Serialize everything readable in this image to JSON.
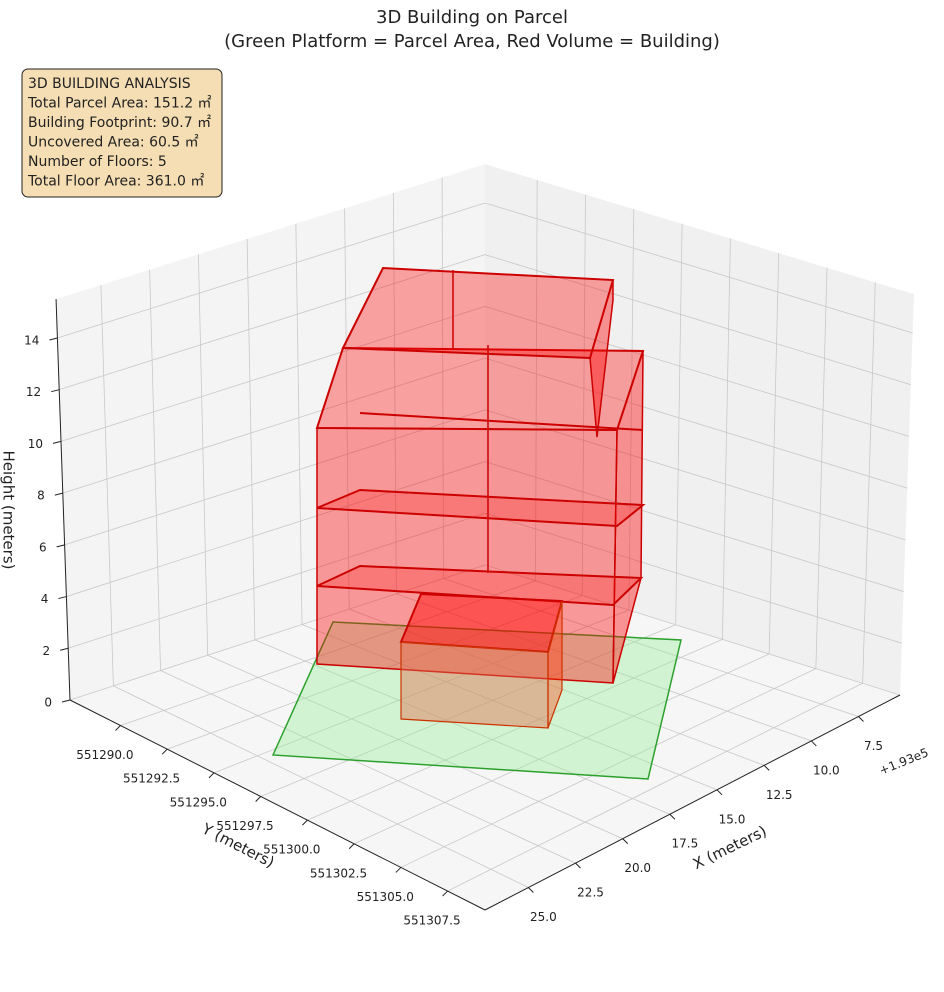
{
  "chart_data": {
    "type": "bar3d",
    "title": "3D Building on Parcel",
    "subtitle": "(Green Platform = Parcel Area, Red Volume = Building)",
    "info_box": [
      "3D BUILDING ANALYSIS",
      "Total Parcel Area: 151.2 ㎡",
      "Building Footprint: 90.7 ㎡",
      "Uncovered Area: 60.5 ㎡",
      "Number of Floors: 5",
      "Total Floor Area: 361.0 ㎡"
    ],
    "xlabel": "X (meters)",
    "ylabel": "Y (meters)",
    "zlabel": "Height (meters)",
    "x_offset_label": "+1.93e5",
    "xlim": [
      5.3,
      27.3
    ],
    "xticks": [
      7.5,
      {
        "value": 10,
        "label": "10.0"
      },
      12.5,
      {
        "value": 15,
        "label": "15.0"
      },
      17.5,
      {
        "value": 20,
        "label": "20.0"
      },
      22.5,
      {
        "value": 25,
        "label": "25.0"
      }
    ],
    "ylim": [
      551287.3,
      551309.5
    ],
    "yticks": [
      {
        "value": 551290,
        "label": "551290.0"
      },
      551292.5,
      {
        "value": 551295,
        "label": "551295.0"
      },
      551297.5,
      {
        "value": 551300,
        "label": "551300.0"
      },
      551302.5,
      {
        "value": 551305,
        "label": "551305.0"
      },
      551307.5
    ],
    "zlim": [
      0,
      15.5
    ],
    "zticks": [
      0,
      2,
      4,
      6,
      8,
      10,
      12,
      14
    ],
    "grid": true
  }
}
